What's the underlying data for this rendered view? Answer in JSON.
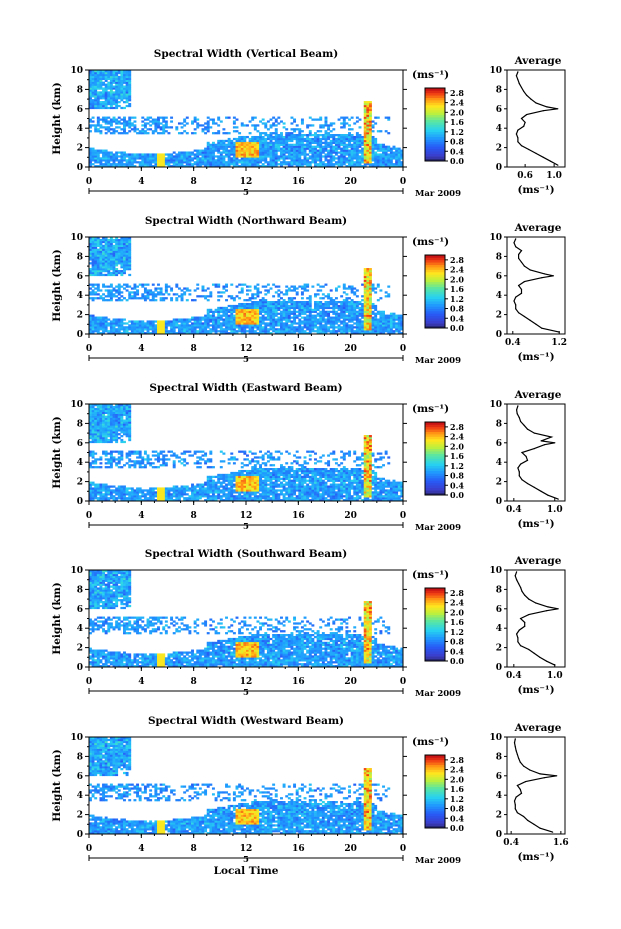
{
  "chart_data": [
    {
      "type": "heatmap",
      "title": "Spectral Width (Vertical Beam)",
      "ylabel": "Height (km)",
      "xlabel": "",
      "x_ticks": [
        "0",
        "4",
        "8",
        "12",
        "16",
        "20",
        "0"
      ],
      "y_ticks": [
        "0",
        "2",
        "4",
        "6",
        "8",
        "10"
      ],
      "xlim": [
        0,
        24
      ],
      "ylim": [
        0,
        10
      ],
      "date_marker": "5",
      "date_label": "Mar 2009",
      "colorbar": {
        "unit": "(ms⁻¹)",
        "ticks": [
          "0.0",
          "0.4",
          "0.8",
          "1.2",
          "1.6",
          "2.0",
          "2.4",
          "2.8"
        ],
        "range": [
          0,
          3.0
        ]
      },
      "average_profile": {
        "title": "Average",
        "xlabel": "(ms⁻¹)",
        "x_ticks": [
          "0.6",
          "1.0"
        ],
        "xlim": [
          0.35,
          1.15
        ],
        "y_ticks": [
          "0",
          "2",
          "4",
          "6",
          "8",
          "10"
        ],
        "ylim": [
          0,
          10
        ],
        "height": [
          0.2,
          0.6,
          1.0,
          1.4,
          1.8,
          2.2,
          2.6,
          3.0,
          3.4,
          3.8,
          4.2,
          4.6,
          5.0,
          5.4,
          5.8,
          6.0,
          6.2,
          6.6,
          7.0,
          7.4,
          7.8,
          8.2,
          8.6,
          9.0,
          9.4,
          9.8
        ],
        "width": [
          1.05,
          0.95,
          0.85,
          0.75,
          0.65,
          0.55,
          0.5,
          0.5,
          0.48,
          0.5,
          0.58,
          0.6,
          0.55,
          0.62,
          0.85,
          1.05,
          0.9,
          0.75,
          0.68,
          0.62,
          0.58,
          0.55,
          0.52,
          0.5,
          0.48,
          0.5
        ]
      }
    },
    {
      "type": "heatmap",
      "title": "Spectral Width (Northward Beam)",
      "ylabel": "Height (km)",
      "xlabel": "",
      "x_ticks": [
        "0",
        "4",
        "8",
        "12",
        "16",
        "20",
        "0"
      ],
      "y_ticks": [
        "0",
        "2",
        "4",
        "6",
        "8",
        "10"
      ],
      "xlim": [
        0,
        24
      ],
      "ylim": [
        0,
        10
      ],
      "date_marker": "5",
      "date_label": "Mar 2009",
      "colorbar": {
        "unit": "(ms⁻¹)",
        "ticks": [
          "0.0",
          "0.4",
          "0.8",
          "1.2",
          "1.6",
          "2.0",
          "2.4",
          "2.8"
        ],
        "range": [
          0,
          3.0
        ]
      },
      "average_profile": {
        "title": "Average",
        "xlabel": "(ms⁻¹)",
        "x_ticks": [
          "0.4",
          "1.2"
        ],
        "xlim": [
          0.3,
          1.3
        ],
        "y_ticks": [
          "0",
          "2",
          "4",
          "6",
          "8",
          "10"
        ],
        "ylim": [
          0,
          10
        ],
        "height": [
          0.2,
          0.6,
          1.0,
          1.4,
          1.8,
          2.2,
          2.6,
          3.0,
          3.4,
          3.8,
          4.2,
          4.6,
          5.0,
          5.4,
          5.8,
          6.0,
          6.2,
          6.6,
          7.0,
          7.4,
          7.8,
          8.2,
          8.6,
          9.0,
          9.4,
          9.8
        ],
        "width": [
          1.2,
          0.9,
          0.8,
          0.7,
          0.6,
          0.5,
          0.45,
          0.45,
          0.42,
          0.45,
          0.55,
          0.55,
          0.5,
          0.6,
          0.9,
          1.1,
          0.95,
          0.7,
          0.6,
          0.55,
          0.5,
          0.5,
          0.55,
          0.45,
          0.42,
          0.45
        ]
      }
    },
    {
      "type": "heatmap",
      "title": "Spectral Width (Eastward Beam)",
      "ylabel": "Height (km)",
      "xlabel": "",
      "x_ticks": [
        "0",
        "4",
        "8",
        "12",
        "16",
        "20",
        "0"
      ],
      "y_ticks": [
        "0",
        "2",
        "4",
        "6",
        "8",
        "10"
      ],
      "xlim": [
        0,
        24
      ],
      "ylim": [
        0,
        10
      ],
      "date_marker": "5",
      "date_label": "Mar 2009",
      "colorbar": {
        "unit": "(ms⁻¹)",
        "ticks": [
          "0.0",
          "0.4",
          "0.8",
          "1.2",
          "1.6",
          "2.0",
          "2.4",
          "2.8"
        ],
        "range": [
          0,
          3.0
        ]
      },
      "average_profile": {
        "title": "Average",
        "xlabel": "(ms⁻¹)",
        "x_ticks": [
          "0.4",
          "1.0"
        ],
        "xlim": [
          0.3,
          1.15
        ],
        "y_ticks": [
          "0",
          "2",
          "4",
          "6",
          "8",
          "10"
        ],
        "ylim": [
          0,
          10
        ],
        "height": [
          0.2,
          0.6,
          1.0,
          1.4,
          1.8,
          2.2,
          2.6,
          3.0,
          3.4,
          3.8,
          4.2,
          4.6,
          5.0,
          5.4,
          5.8,
          6.0,
          6.2,
          6.6,
          7.0,
          7.4,
          7.8,
          8.2,
          8.6,
          9.0,
          9.4,
          9.8
        ],
        "width": [
          1.05,
          0.9,
          0.8,
          0.7,
          0.6,
          0.52,
          0.48,
          0.48,
          0.46,
          0.5,
          0.6,
          0.58,
          0.52,
          0.7,
          0.85,
          1.0,
          0.8,
          0.95,
          0.7,
          0.6,
          0.55,
          0.5,
          0.48,
          0.45,
          0.44,
          0.46
        ]
      }
    },
    {
      "type": "heatmap",
      "title": "Spectral Width (Southward Beam)",
      "ylabel": "Height (km)",
      "xlabel": "",
      "x_ticks": [
        "0",
        "4",
        "8",
        "12",
        "16",
        "20",
        "0"
      ],
      "y_ticks": [
        "0",
        "2",
        "4",
        "6",
        "8",
        "10"
      ],
      "xlim": [
        0,
        24
      ],
      "ylim": [
        0,
        10
      ],
      "date_marker": "5",
      "date_label": "Mar 2009",
      "colorbar": {
        "unit": "(ms⁻¹)",
        "ticks": [
          "0.0",
          "0.4",
          "0.8",
          "1.2",
          "1.6",
          "2.0",
          "2.4",
          "2.8"
        ],
        "range": [
          0,
          3.0
        ]
      },
      "average_profile": {
        "title": "Average",
        "xlabel": "(ms⁻¹)",
        "x_ticks": [
          "0.4",
          "1.0"
        ],
        "xlim": [
          0.3,
          1.15
        ],
        "y_ticks": [
          "0",
          "2",
          "4",
          "6",
          "8",
          "10"
        ],
        "ylim": [
          0,
          10
        ],
        "height": [
          0.2,
          0.6,
          1.0,
          1.4,
          1.8,
          2.2,
          2.6,
          3.0,
          3.4,
          3.8,
          4.2,
          4.6,
          5.0,
          5.4,
          5.8,
          6.0,
          6.2,
          6.6,
          7.0,
          7.4,
          7.8,
          8.2,
          8.6,
          9.0,
          9.4,
          9.8
        ],
        "width": [
          1.0,
          0.88,
          0.78,
          0.7,
          0.62,
          0.5,
          0.46,
          0.46,
          0.44,
          0.48,
          0.56,
          0.56,
          0.5,
          0.62,
          0.88,
          1.05,
          0.9,
          0.72,
          0.62,
          0.56,
          0.52,
          0.5,
          0.47,
          0.44,
          0.42,
          0.44
        ]
      }
    },
    {
      "type": "heatmap",
      "title": "Spectral Width (Westward Beam)",
      "ylabel": "Height (km)",
      "xlabel": "Local Time",
      "x_ticks": [
        "0",
        "4",
        "8",
        "12",
        "16",
        "20",
        "0"
      ],
      "y_ticks": [
        "0",
        "2",
        "4",
        "6",
        "8",
        "10"
      ],
      "xlim": [
        0,
        24
      ],
      "ylim": [
        0,
        10
      ],
      "date_marker": "5",
      "date_label": "Mar 2009",
      "colorbar": {
        "unit": "(ms⁻¹)",
        "ticks": [
          "0.0",
          "0.4",
          "0.8",
          "1.2",
          "1.6",
          "2.0",
          "2.4",
          "2.8"
        ],
        "range": [
          0,
          3.0
        ]
      },
      "average_profile": {
        "title": "Average",
        "xlabel": "(ms⁻¹)",
        "x_ticks": [
          "0.4",
          "1.6"
        ],
        "xlim": [
          0.3,
          1.7
        ],
        "y_ticks": [
          "0",
          "2",
          "4",
          "6",
          "8",
          "10"
        ],
        "ylim": [
          0,
          10
        ],
        "height": [
          0.2,
          0.6,
          1.0,
          1.4,
          1.8,
          2.2,
          2.6,
          3.0,
          3.4,
          3.8,
          4.2,
          4.6,
          5.0,
          5.4,
          5.8,
          6.0,
          6.2,
          6.6,
          7.0,
          7.4,
          7.8,
          8.2,
          8.6,
          9.0,
          9.4,
          9.8
        ],
        "width": [
          1.4,
          1.1,
          0.95,
          0.8,
          0.7,
          0.55,
          0.5,
          0.5,
          0.48,
          0.52,
          0.65,
          0.62,
          0.55,
          0.75,
          1.2,
          1.5,
          1.1,
          0.85,
          0.7,
          0.62,
          0.58,
          0.55,
          0.52,
          0.5,
          0.48,
          0.5
        ]
      }
    }
  ]
}
